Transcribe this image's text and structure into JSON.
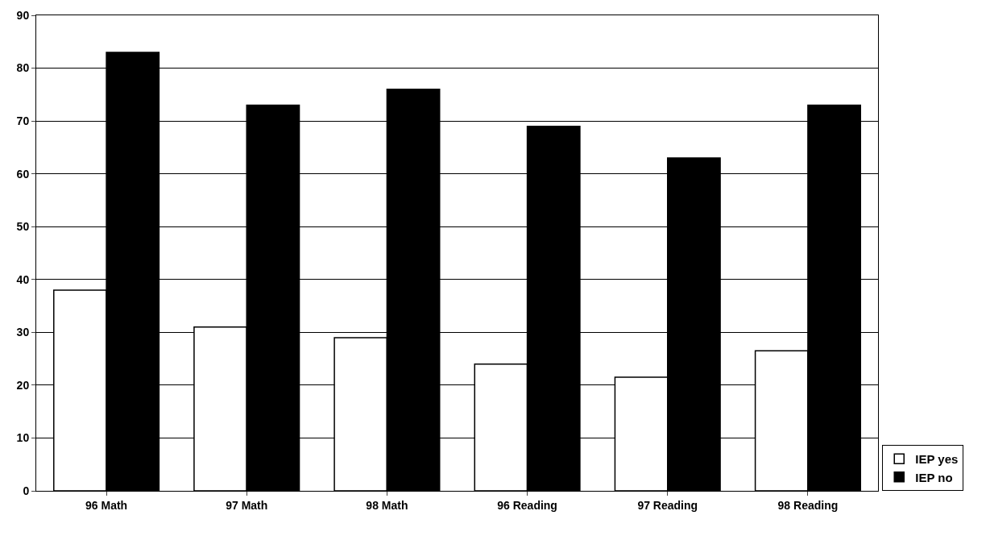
{
  "chart_data": {
    "type": "bar",
    "categories": [
      "96 Math",
      "97 Math",
      "98 Math",
      "96 Reading",
      "97 Reading",
      "98 Reading"
    ],
    "series": [
      {
        "name": "IEP yes",
        "color": "#ffffff",
        "values": [
          38,
          31,
          29,
          24,
          21.5,
          26.5
        ]
      },
      {
        "name": "IEP no",
        "color": "#000000",
        "values": [
          83,
          73,
          76,
          69,
          63,
          73
        ]
      }
    ],
    "ylim": [
      0,
      90
    ],
    "yticks": [
      0,
      10,
      20,
      30,
      40,
      50,
      60,
      70,
      80,
      90
    ],
    "grid": "y",
    "legend": "bottom right"
  }
}
